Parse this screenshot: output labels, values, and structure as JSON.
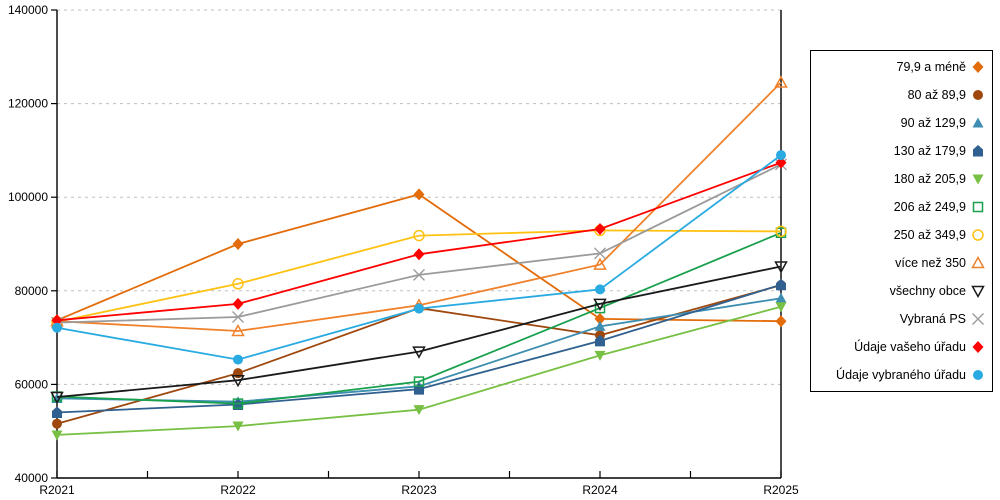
{
  "chart_data": {
    "type": "line",
    "title": "",
    "xlabel": "",
    "ylabel": "",
    "x_categories": [
      "R2021",
      "R2022",
      "R2023",
      "R2024",
      "R2025"
    ],
    "y_ticks": [
      40000,
      60000,
      80000,
      100000,
      120000,
      140000
    ],
    "ylim": [
      40000,
      140000
    ],
    "grid": "horizontal-dashed",
    "grid_color": "#BFBFBF",
    "axis_color": "#000000",
    "legend_position": "right",
    "series": [
      {
        "name": "79,9 a méně",
        "color": "#E36C0A",
        "marker": "diamond",
        "fill": "solid",
        "values": [
          73700,
          90000,
          100600,
          74000,
          73500
        ]
      },
      {
        "name": "80 až 89,9",
        "color": "#9E480E",
        "marker": "circle",
        "fill": "solid",
        "values": [
          51600,
          62400,
          76300,
          70500,
          81200
        ]
      },
      {
        "name": "90 až 129,9",
        "color": "#3D8EB0",
        "marker": "triangle-up",
        "fill": "solid",
        "values": [
          57000,
          56300,
          59600,
          72400,
          78400
        ]
      },
      {
        "name": "130 až 179,9",
        "color": "#30608F",
        "marker": "pentagon",
        "fill": "solid",
        "values": [
          54000,
          55700,
          59000,
          69300,
          81300
        ]
      },
      {
        "name": "180 až 205,9",
        "color": "#77C043",
        "marker": "triangle-down",
        "fill": "solid",
        "values": [
          49200,
          51100,
          54600,
          66200,
          76600
        ]
      },
      {
        "name": "206 až 249,9",
        "color": "#18A04D",
        "marker": "square",
        "fill": "outline",
        "values": [
          57400,
          55900,
          60600,
          76300,
          92400
        ]
      },
      {
        "name": "250 až 349,9",
        "color": "#FFC213",
        "marker": "circle",
        "fill": "outline",
        "values": [
          73400,
          81500,
          91800,
          92900,
          92700
        ]
      },
      {
        "name": "více než 350",
        "color": "#F0812B",
        "marker": "triangle-up",
        "fill": "outline",
        "values": [
          73500,
          71400,
          76900,
          85600,
          124500
        ]
      },
      {
        "name": "všechny obce",
        "color": "#1A1A1A",
        "marker": "triangle-down",
        "fill": "outline",
        "values": [
          57300,
          60900,
          67000,
          77200,
          85200
        ]
      },
      {
        "name": "Vybraná PS",
        "color": "#9B9B9B",
        "marker": "x",
        "fill": "outline",
        "values": [
          73200,
          74400,
          83400,
          88000,
          107000
        ]
      },
      {
        "name": "Údaje vašeho úřadu",
        "color": "#FF0000",
        "marker": "diamond",
        "fill": "solid",
        "values": [
          73700,
          77200,
          87800,
          93200,
          107400
        ]
      },
      {
        "name": "Údaje vybraného úřadu",
        "color": "#29ABE2",
        "marker": "circle",
        "fill": "solid",
        "values": [
          72100,
          65300,
          76200,
          80300,
          109000
        ]
      }
    ]
  }
}
